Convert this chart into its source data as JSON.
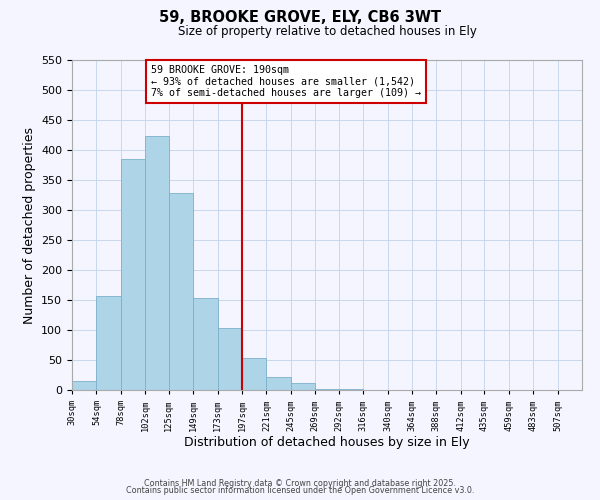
{
  "title": "59, BROOKE GROVE, ELY, CB6 3WT",
  "subtitle": "Size of property relative to detached houses in Ely",
  "xlabel": "Distribution of detached houses by size in Ely",
  "ylabel": "Number of detached properties",
  "bar_color": "#aed4e8",
  "bar_edgecolor": "#7ab0cc",
  "bin_labels": [
    "30sqm",
    "54sqm",
    "78sqm",
    "102sqm",
    "125sqm",
    "149sqm",
    "173sqm",
    "197sqm",
    "221sqm",
    "245sqm",
    "269sqm",
    "292sqm",
    "316sqm",
    "340sqm",
    "364sqm",
    "388sqm",
    "412sqm",
    "435sqm",
    "459sqm",
    "483sqm",
    "507sqm"
  ],
  "bin_edges": [
    30,
    54,
    78,
    102,
    125,
    149,
    173,
    197,
    221,
    245,
    269,
    292,
    316,
    340,
    364,
    388,
    412,
    435,
    459,
    483,
    507
  ],
  "bar_heights": [
    15,
    157,
    385,
    424,
    329,
    153,
    103,
    54,
    22,
    12,
    2,
    1,
    0,
    0,
    0,
    0,
    0,
    0,
    0,
    0
  ],
  "vline_x": 197,
  "vline_color": "#cc0000",
  "annotation_line1": "59 BROOKE GROVE: 190sqm",
  "annotation_line2": "← 93% of detached houses are smaller (1,542)",
  "annotation_line3": "7% of semi-detached houses are larger (109) →",
  "annotation_box_color": "#cc0000",
  "ylim": [
    0,
    550
  ],
  "yticks": [
    0,
    50,
    100,
    150,
    200,
    250,
    300,
    350,
    400,
    450,
    500,
    550
  ],
  "footer1": "Contains HM Land Registry data © Crown copyright and database right 2025.",
  "footer2": "Contains public sector information licensed under the Open Government Licence v3.0.",
  "bg_color": "#f5f5ff",
  "grid_color": "#c8d8ec"
}
